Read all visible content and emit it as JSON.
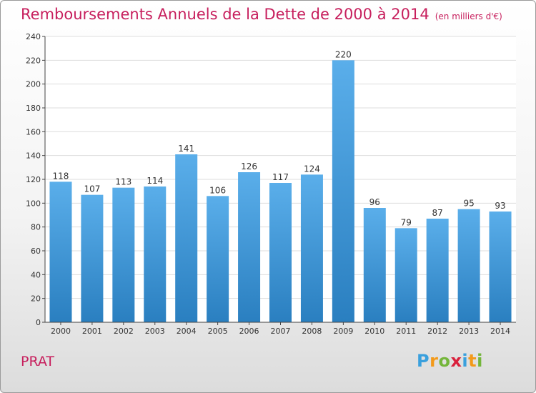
{
  "header": {
    "title": "Remboursements Annuels de la Dette de 2000 à 2014",
    "unit_note": "(en milliers d'€)"
  },
  "footer": {
    "commune": "PRAT",
    "logo_text": "Proxiti",
    "logo_colors": [
      "#3aa0dd",
      "#f39a1a",
      "#74b63b",
      "#d9203c",
      "#3aa0dd",
      "#f39a1a",
      "#74b63b"
    ]
  },
  "colors": {
    "accent": "#c71f5d",
    "bar_top": "#5aaeea",
    "bar_bottom": "#2a7fc0",
    "grid": "#dddddd",
    "axis": "#444444"
  },
  "chart_data": {
    "type": "bar",
    "categories": [
      "2000",
      "2001",
      "2002",
      "2003",
      "2004",
      "2005",
      "2006",
      "2007",
      "2008",
      "2009",
      "2010",
      "2011",
      "2012",
      "2013",
      "2014"
    ],
    "values": [
      118,
      107,
      113,
      114,
      141,
      106,
      126,
      117,
      124,
      220,
      96,
      79,
      87,
      95,
      93
    ],
    "title": "Remboursements Annuels de la Dette de 2000 à 2014",
    "ylim": [
      0,
      240
    ],
    "yticks": [
      0,
      20,
      40,
      60,
      80,
      100,
      120,
      140,
      160,
      180,
      200,
      220,
      240
    ],
    "grid": true,
    "data_labels": true
  }
}
